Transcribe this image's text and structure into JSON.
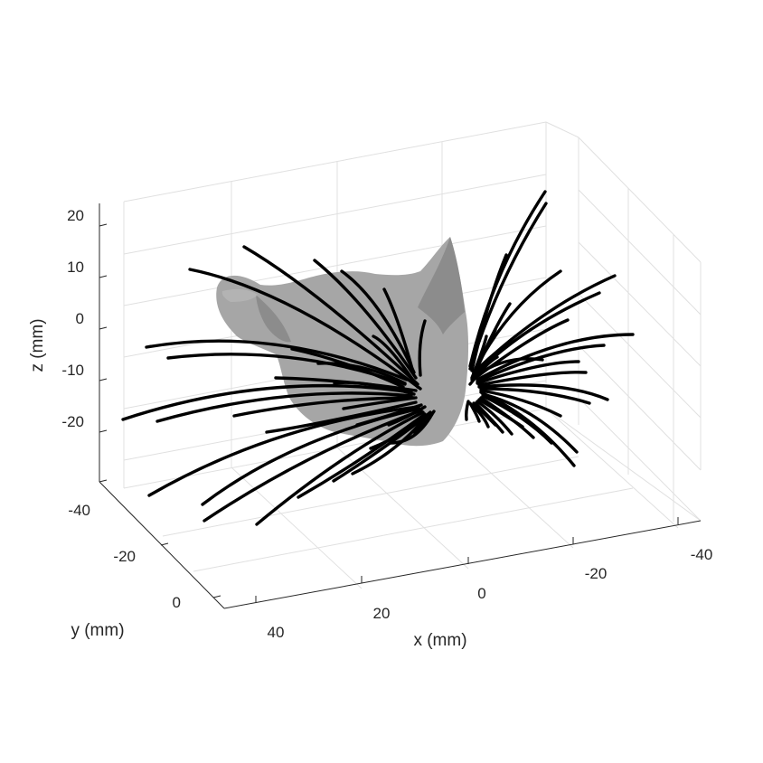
{
  "chart_data": {
    "type": "3d-line",
    "subject": "whisker array on head model",
    "xlabel": "x (mm)",
    "ylabel": "y (mm)",
    "zlabel": "z (mm)",
    "x_ticks": [
      "40",
      "20",
      "0",
      "-20",
      "-40"
    ],
    "y_ticks": [
      "-40",
      "-20",
      "0"
    ],
    "z_ticks": [
      "20",
      "10",
      "0",
      "-10",
      "-20"
    ],
    "xlim": [
      -48,
      48
    ],
    "ylim": [
      -48,
      10
    ],
    "zlim": [
      -30,
      25
    ],
    "grid": true,
    "series": [
      {
        "side": "right",
        "count": 30
      },
      {
        "side": "left",
        "count": 30
      }
    ],
    "colors": {
      "whiskers": "#000000",
      "head": "#a6a6a6",
      "grid": "#e0e0e0",
      "axis": "#262626"
    }
  }
}
